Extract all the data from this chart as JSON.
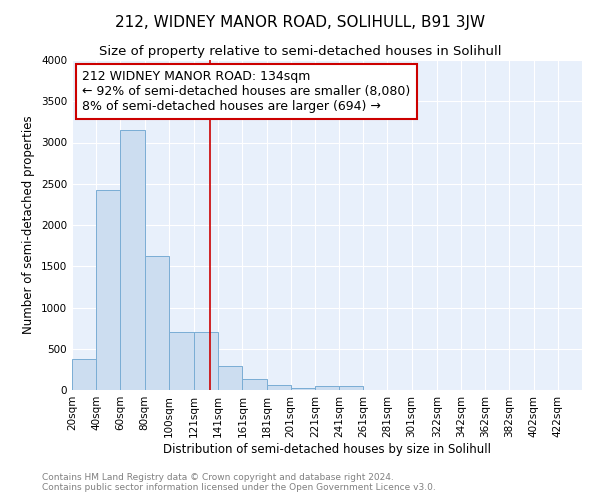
{
  "title": "212, WIDNEY MANOR ROAD, SOLIHULL, B91 3JW",
  "subtitle": "Size of property relative to semi-detached houses in Solihull",
  "xlabel": "Distribution of semi-detached houses by size in Solihull",
  "ylabel": "Number of semi-detached properties",
  "annotation_line1": "212 WIDNEY MANOR ROAD: 134sqm",
  "annotation_line2": "← 92% of semi-detached houses are smaller (8,080)",
  "annotation_line3": "8% of semi-detached houses are larger (694) →",
  "property_size": 134,
  "footnote1": "Contains HM Land Registry data © Crown copyright and database right 2024.",
  "footnote2": "Contains public sector information licensed under the Open Government Licence v3.0.",
  "bin_labels": [
    "20sqm",
    "40sqm",
    "60sqm",
    "80sqm",
    "100sqm",
    "121sqm",
    "141sqm",
    "161sqm",
    "181sqm",
    "201sqm",
    "221sqm",
    "241sqm",
    "261sqm",
    "281sqm",
    "301sqm",
    "322sqm",
    "342sqm",
    "362sqm",
    "382sqm",
    "402sqm",
    "422sqm"
  ],
  "bin_edges": [
    20,
    40,
    60,
    80,
    100,
    121,
    141,
    161,
    181,
    201,
    221,
    241,
    261,
    281,
    301,
    322,
    342,
    362,
    382,
    402,
    422
  ],
  "bar_heights": [
    375,
    2420,
    3150,
    1630,
    700,
    700,
    290,
    130,
    60,
    30,
    50,
    50,
    5,
    0,
    0,
    0,
    0,
    0,
    0,
    0,
    0
  ],
  "bar_color": "#ccddf0",
  "bar_edge_color": "#7aadd4",
  "vline_x": 134,
  "vline_color": "#cc0000",
  "box_edge_color": "#cc0000",
  "ylim": [
    0,
    4000
  ],
  "yticks": [
    0,
    500,
    1000,
    1500,
    2000,
    2500,
    3000,
    3500,
    4000
  ],
  "background_color": "#e8f0fb",
  "grid_color": "#ffffff",
  "title_fontsize": 11,
  "subtitle_fontsize": 9.5,
  "axis_label_fontsize": 8.5,
  "tick_fontsize": 7.5,
  "annotation_fontsize": 9,
  "footnote_fontsize": 6.5
}
